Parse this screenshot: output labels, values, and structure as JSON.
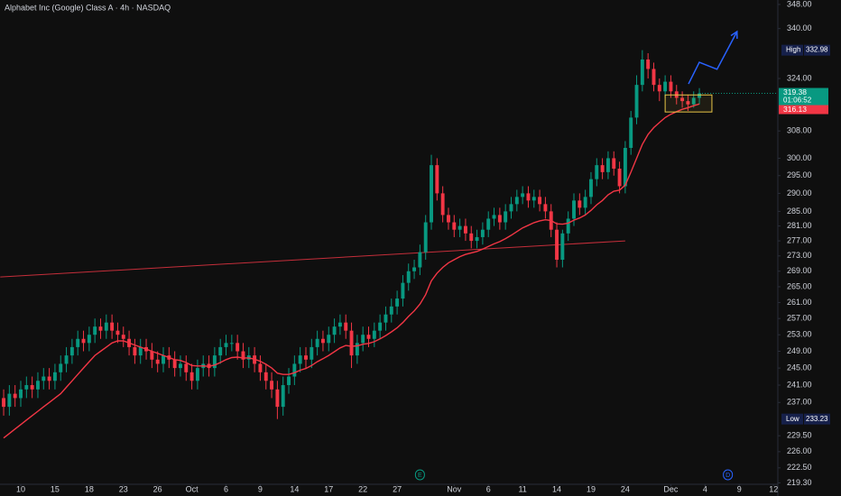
{
  "chart_data": {
    "type": "candlestick",
    "title": "Alphabet Inc (Google) Class A · 4h · NASDAQ",
    "log_scale": true,
    "grid": false,
    "up_color": "#089981",
    "down_color": "#f23645",
    "xlim": [
      0.36,
      136.76
    ],
    "ylim": [
      219.0,
      349.5
    ],
    "xticks": [
      {
        "value": 4,
        "label": "10"
      },
      {
        "value": 10,
        "label": "15"
      },
      {
        "value": 16,
        "label": "18"
      },
      {
        "value": 22,
        "label": "23"
      },
      {
        "value": 28,
        "label": "26"
      },
      {
        "value": 34,
        "label": "Oct"
      },
      {
        "value": 40,
        "label": "6"
      },
      {
        "value": 46,
        "label": "9"
      },
      {
        "value": 52,
        "label": "14"
      },
      {
        "value": 58,
        "label": "17"
      },
      {
        "value": 64,
        "label": "22"
      },
      {
        "value": 70,
        "label": "27"
      },
      {
        "value": 80,
        "label": "Nov"
      },
      {
        "value": 86,
        "label": "6"
      },
      {
        "value": 92,
        "label": "11"
      },
      {
        "value": 98,
        "label": "14"
      },
      {
        "value": 104,
        "label": "19"
      },
      {
        "value": 110,
        "label": "24"
      },
      {
        "value": 118,
        "label": "Dec"
      },
      {
        "value": 124,
        "label": "4"
      },
      {
        "value": 130,
        "label": "9"
      },
      {
        "value": 136,
        "label": "12"
      }
    ],
    "yticks": [
      {
        "value": 348,
        "label": "348.00"
      },
      {
        "value": 340,
        "label": "340.00"
      },
      {
        "value": 324,
        "label": "324.00"
      },
      {
        "value": 308,
        "label": "308.00"
      },
      {
        "value": 300,
        "label": "300.00"
      },
      {
        "value": 295,
        "label": "295.00"
      },
      {
        "value": 290,
        "label": "290.00"
      },
      {
        "value": 285,
        "label": "285.00"
      },
      {
        "value": 281,
        "label": "281.00"
      },
      {
        "value": 277,
        "label": "277.00"
      },
      {
        "value": 273,
        "label": "273.00"
      },
      {
        "value": 269,
        "label": "269.00"
      },
      {
        "value": 265,
        "label": "265.00"
      },
      {
        "value": 261,
        "label": "261.00"
      },
      {
        "value": 257,
        "label": "257.00"
      },
      {
        "value": 253,
        "label": "253.00"
      },
      {
        "value": 249,
        "label": "249.00"
      },
      {
        "value": 245,
        "label": "245.00"
      },
      {
        "value": 241,
        "label": "241.00"
      },
      {
        "value": 237,
        "label": "237.00"
      },
      {
        "value": 229.5,
        "label": "229.50"
      },
      {
        "value": 226,
        "label": "226.00"
      },
      {
        "value": 222.5,
        "label": "222.50"
      },
      {
        "value": 219.3,
        "label": "219.30"
      }
    ],
    "x": [
      1,
      2,
      3,
      4,
      5,
      6,
      7,
      8,
      9,
      10,
      11,
      12,
      13,
      14,
      15,
      16,
      17,
      18,
      19,
      20,
      21,
      22,
      23,
      24,
      25,
      26,
      27,
      28,
      29,
      30,
      31,
      32,
      33,
      34,
      35,
      36,
      37,
      38,
      39,
      40,
      41,
      42,
      43,
      44,
      45,
      46,
      47,
      48,
      49,
      50,
      51,
      52,
      53,
      54,
      55,
      56,
      57,
      58,
      59,
      60,
      61,
      62,
      63,
      64,
      65,
      66,
      67,
      68,
      69,
      70,
      71,
      72,
      73,
      74,
      75,
      76,
      77,
      78,
      79,
      80,
      81,
      82,
      83,
      84,
      85,
      86,
      87,
      88,
      89,
      90,
      91,
      92,
      93,
      94,
      95,
      96,
      97,
      98,
      99,
      100,
      101,
      102,
      103,
      104,
      105,
      106,
      107,
      108,
      109,
      110,
      111,
      112,
      113,
      114,
      115,
      116,
      117,
      118,
      119,
      120,
      121,
      122,
      123
    ],
    "open": [
      238,
      236,
      239,
      238,
      240,
      241,
      240,
      242,
      243,
      242,
      244,
      246,
      248,
      250,
      252,
      251,
      253,
      255,
      254,
      256,
      254,
      253,
      252,
      250,
      248,
      250,
      249,
      247,
      246,
      248,
      247,
      245,
      246,
      244,
      242,
      245,
      246,
      245,
      248,
      250,
      251,
      251,
      249,
      247,
      248,
      246,
      244,
      242,
      240,
      236,
      241,
      243,
      246,
      248,
      247,
      250,
      252,
      251,
      253,
      255,
      256,
      254,
      248,
      251,
      253,
      252,
      254,
      256,
      258,
      260,
      262,
      266,
      269,
      270,
      274,
      282,
      298,
      290,
      284,
      282,
      280,
      281,
      279,
      277,
      278,
      280,
      283,
      284,
      282,
      285,
      287,
      289,
      290,
      288,
      289,
      287,
      285,
      280,
      272,
      279,
      283,
      288,
      286,
      289,
      294,
      298,
      296,
      300,
      297,
      292,
      303,
      312,
      322,
      330,
      327,
      322,
      320,
      323,
      320,
      318,
      317,
      316,
      318
    ],
    "high": [
      240,
      241,
      241,
      242,
      243,
      243,
      244,
      245,
      245,
      246,
      248,
      250,
      252,
      254,
      254,
      255,
      257,
      257,
      258,
      258,
      256,
      255,
      254,
      252,
      252,
      252,
      251,
      249,
      250,
      250,
      249,
      248,
      248,
      246,
      247,
      248,
      248,
      250,
      252,
      253,
      253,
      253,
      251,
      250,
      250,
      248,
      246,
      244,
      242,
      243,
      245,
      248,
      250,
      250,
      252,
      254,
      254,
      255,
      257,
      258,
      258,
      256,
      253,
      255,
      255,
      256,
      258,
      260,
      262,
      264,
      268,
      271,
      272,
      276,
      284,
      301,
      300,
      292,
      286,
      284,
      283,
      283,
      281,
      280,
      282,
      285,
      286,
      286,
      287,
      289,
      291,
      292,
      292,
      291,
      291,
      289,
      287,
      282,
      280,
      285,
      290,
      290,
      291,
      296,
      300,
      300,
      302,
      302,
      299,
      305,
      314,
      325,
      332.98,
      332,
      329,
      324,
      325,
      325,
      322,
      320,
      319,
      320,
      321
    ],
    "low": [
      234,
      234,
      236,
      236,
      238,
      238,
      238,
      240,
      240,
      240,
      242,
      244,
      246,
      248,
      249,
      249,
      251,
      252,
      252,
      252,
      251,
      250,
      248,
      246,
      246,
      247,
      245,
      244,
      244,
      245,
      243,
      243,
      242,
      240,
      240,
      243,
      243,
      243,
      246,
      248,
      249,
      247,
      245,
      245,
      244,
      242,
      240,
      238,
      233.23,
      234,
      239,
      241,
      244,
      245,
      245,
      248,
      249,
      249,
      251,
      253,
      252,
      245,
      246,
      249,
      250,
      250,
      252,
      254,
      256,
      258,
      260,
      264,
      267,
      268,
      272,
      280,
      288,
      282,
      280,
      278,
      278,
      277,
      275,
      275,
      276,
      278,
      281,
      280,
      280,
      283,
      285,
      287,
      286,
      286,
      285,
      283,
      278,
      270,
      270,
      277,
      281,
      284,
      284,
      287,
      292,
      294,
      294,
      295,
      290,
      290,
      301,
      310,
      320,
      324,
      320,
      317,
      318,
      318,
      316,
      315,
      314,
      315,
      316
    ],
    "close": [
      236,
      239,
      238,
      240,
      241,
      240,
      242,
      243,
      242,
      244,
      246,
      248,
      250,
      252,
      251,
      253,
      255,
      254,
      256,
      254,
      253,
      252,
      250,
      248,
      250,
      249,
      247,
      246,
      248,
      247,
      245,
      246,
      244,
      242,
      245,
      246,
      245,
      248,
      250,
      251,
      251,
      249,
      247,
      248,
      246,
      244,
      242,
      240,
      236,
      241,
      243,
      246,
      248,
      247,
      250,
      252,
      251,
      253,
      255,
      256,
      254,
      248,
      251,
      253,
      252,
      254,
      256,
      258,
      260,
      262,
      266,
      269,
      270,
      274,
      282,
      298,
      290,
      284,
      282,
      280,
      281,
      279,
      277,
      278,
      280,
      283,
      284,
      282,
      285,
      287,
      289,
      290,
      288,
      289,
      287,
      285,
      280,
      272,
      279,
      283,
      288,
      286,
      289,
      294,
      298,
      296,
      300,
      297,
      292,
      303,
      312,
      322,
      330,
      327,
      322,
      320,
      323,
      320,
      318,
      317,
      316,
      318,
      319.38
    ],
    "ema": {
      "color": "#f23645",
      "values": [
        229,
        230,
        231,
        232,
        233,
        234,
        235,
        236,
        237,
        238,
        239,
        240.5,
        242,
        243.5,
        245,
        246.5,
        248,
        249,
        250,
        251,
        251.5,
        251.5,
        251,
        250.5,
        250,
        249.5,
        249,
        248.5,
        248,
        247.5,
        247,
        246.8,
        246.3,
        245.6,
        245.5,
        245.5,
        245.4,
        245.7,
        246.3,
        247,
        247.5,
        247.6,
        247.4,
        247.4,
        247.1,
        246.6,
        245.9,
        245,
        243.8,
        243.5,
        243.5,
        243.9,
        244.5,
        244.9,
        245.6,
        246.5,
        247.2,
        248,
        248.9,
        249.8,
        250.4,
        250.2,
        250.3,
        250.7,
        250.9,
        251.3,
        252,
        252.8,
        253.7,
        254.7,
        256,
        257.5,
        258.9,
        260.6,
        263,
        266.5,
        268.5,
        270,
        271.2,
        272,
        272.8,
        273.4,
        273.8,
        274.2,
        274.8,
        275.5,
        276.2,
        276.8,
        277.6,
        278.5,
        279.5,
        280.5,
        281.2,
        281.9,
        282.4,
        282.7,
        282.5,
        281.6,
        281.5,
        281.8,
        282.6,
        283.2,
        284,
        285.3,
        286.8,
        288,
        289.6,
        290.6,
        290.9,
        292.3,
        296,
        300,
        304,
        307,
        309,
        310.5,
        312,
        313,
        313.8,
        314.5,
        315,
        315.6,
        316.13
      ]
    },
    "trendline": {
      "color": "#f23645",
      "x": [
        0.4,
        110
      ],
      "y": [
        267.5,
        277
      ]
    },
    "projection": {
      "color": "#2962ff",
      "x": [
        121.1,
        123,
        126.1,
        129.6
      ],
      "y": [
        322.3,
        329.1,
        326.9,
        339
      ]
    },
    "box": {
      "color": "#e8c547",
      "x": [
        117,
        125.2
      ],
      "y": [
        313.7,
        318.9
      ]
    },
    "high_label": {
      "label": "High",
      "value": 332.98
    },
    "low_label": {
      "label": "Low",
      "value": 233.23
    },
    "last_price": {
      "value": 319.38,
      "countdown": "01:06:52",
      "color": "#089981"
    },
    "ema_price": {
      "value": 316.13,
      "color": "#f23645"
    },
    "events": [
      {
        "label": "E",
        "x": 74,
        "color": "#089981"
      },
      {
        "label": "D",
        "x": 128,
        "color": "#2962ff"
      }
    ]
  }
}
